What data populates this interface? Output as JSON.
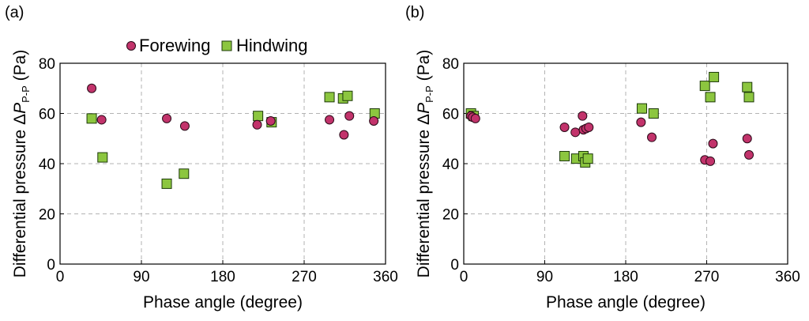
{
  "colors": {
    "forewing": "#c2336b",
    "hindwing": "#8cc63f"
  },
  "legend": {
    "forewing": "Forewing",
    "hindwing": "Hindwing"
  },
  "chart_data": [
    {
      "type": "scatter",
      "panel_label": "(a)",
      "xlabel": "Phase angle (degree)",
      "ylabel": "Differential pressure ΔP P-P (Pa)",
      "ylabel_parts": {
        "main": "Differential pressure Δ",
        "var": "P",
        "sub": "P-P",
        "unit": " (Pa)"
      },
      "xlim": [
        0,
        360
      ],
      "ylim": [
        0,
        80
      ],
      "xticks": [
        "0",
        "90",
        "180",
        "270",
        "360"
      ],
      "yticks": [
        "0",
        "20",
        "40",
        "60",
        "80"
      ],
      "grid": true,
      "legend_position": "top",
      "series": [
        {
          "name": "Forewing",
          "marker": "circle",
          "x": [
            35,
            46,
            118,
            138,
            218,
            233,
            298,
            314,
            320,
            347
          ],
          "y": [
            70,
            57.5,
            58,
            55,
            55.5,
            57,
            57.5,
            51.5,
            59,
            57
          ]
        },
        {
          "name": "Hindwing",
          "marker": "square",
          "x": [
            35,
            47,
            118,
            137,
            219,
            234,
            298,
            313,
            318,
            348
          ],
          "y": [
            58,
            42.5,
            32,
            36,
            59,
            56.5,
            66.5,
            66,
            67,
            60
          ]
        }
      ]
    },
    {
      "type": "scatter",
      "panel_label": "(b)",
      "xlabel": "Phase angle (degree)",
      "ylabel": "Differential pressure ΔP P-P (Pa)",
      "ylabel_parts": {
        "main": "Differential pressure Δ",
        "var": "P",
        "sub": "P-P",
        "unit": " (Pa)"
      },
      "xlim": [
        0,
        360
      ],
      "ylim": [
        0,
        80
      ],
      "xticks": [
        "0",
        "90",
        "180",
        "270",
        "360"
      ],
      "yticks": [
        "0",
        "20",
        "40",
        "60",
        "80"
      ],
      "grid": true,
      "legend_position": "none",
      "series": [
        {
          "name": "Forewing",
          "marker": "circle",
          "x": [
            8,
            10,
            13,
            112,
            124,
            132,
            133,
            136,
            139,
            197,
            209,
            268,
            274,
            277,
            315,
            317
          ],
          "y": [
            59,
            58.5,
            58,
            54.5,
            52.5,
            59,
            53.5,
            54,
            54.5,
            56.5,
            50.5,
            41.5,
            41,
            48,
            50,
            43.5
          ]
        },
        {
          "name": "Hindwing",
          "marker": "square",
          "x": [
            8,
            11,
            112,
            125,
            133,
            135,
            138,
            198,
            211,
            268,
            274,
            278,
            315,
            317
          ],
          "y": [
            60,
            59,
            43,
            42,
            43,
            40.5,
            42,
            62,
            60,
            71,
            66.5,
            74.5,
            70.5,
            66.5
          ]
        }
      ]
    }
  ]
}
